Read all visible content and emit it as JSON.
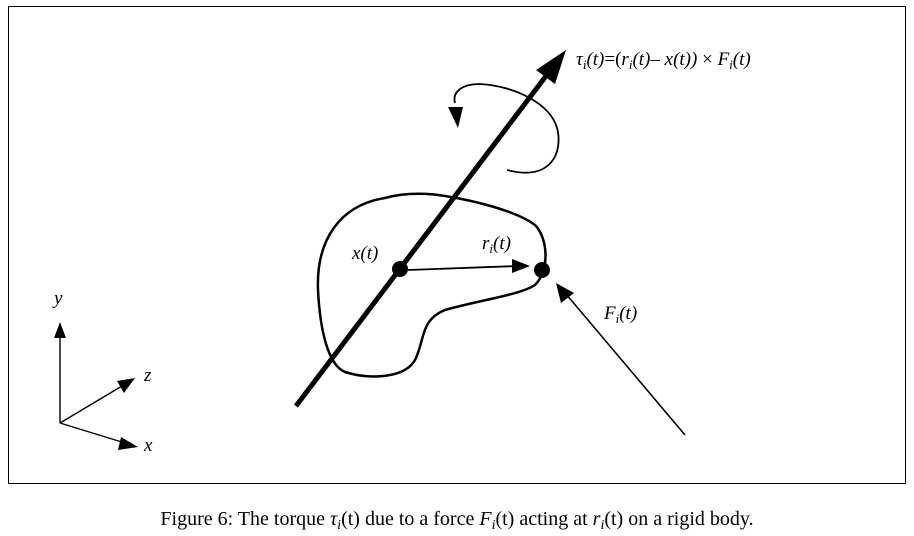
{
  "diagram": {
    "torque_equation": {
      "tau": "τ",
      "i": "i",
      "t": "(t)",
      "eq": "=",
      "open": "(",
      "r": "r",
      "minus_x": "– x(t))",
      "cross": "×",
      "F": "F"
    },
    "labels": {
      "x_of_t": "x(t)",
      "r_sym": "r",
      "r_sub": "i",
      "r_arg": "(t)",
      "F_sym": "F",
      "F_sub": "i",
      "F_arg": "(t)"
    },
    "axes": {
      "x": "x",
      "y": "y",
      "z": "z"
    }
  },
  "caption": {
    "prefix": "Figure 6: The torque ",
    "tau": "τ",
    "tau_sub": "i",
    "tau_arg": "(t)",
    "mid1": " due to a force ",
    "F": "F",
    "F_sub": "i",
    "F_arg": "(t)",
    "mid2": " acting at ",
    "r": "r",
    "r_sub": "i",
    "r_arg": "(t)",
    "suffix": " on a rigid body."
  },
  "colors": {
    "ink": "#000000",
    "background": "#ffffff"
  }
}
